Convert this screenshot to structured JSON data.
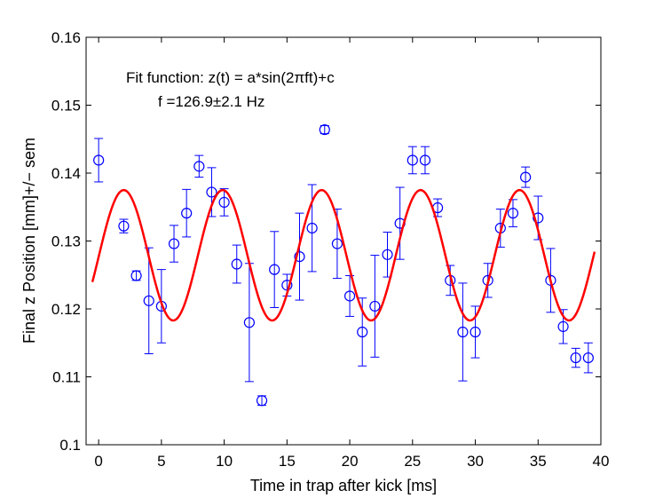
{
  "chart_data": {
    "type": "scatter",
    "xlabel": "Time in trap after kick [ms]",
    "ylabel": "Final z Position [mm]+/− sem",
    "xlim": [
      -1,
      40
    ],
    "ylim": [
      0.1,
      0.16
    ],
    "xticks": [
      0,
      5,
      10,
      15,
      20,
      25,
      30,
      35,
      40
    ],
    "yticks": [
      0.1,
      0.11,
      0.12,
      0.13,
      0.14,
      0.15,
      0.16
    ],
    "ytick_labels": [
      "0.1",
      "0.11",
      "0.12",
      "0.13",
      "0.14",
      "0.15",
      "0.16"
    ],
    "grid": false,
    "annotations": [
      "Fit function: z(t) = a*sin(2πft)+c",
      "f =126.9±2.1 Hz"
    ],
    "series": [
      {
        "type": "errorbar",
        "color": "#0000ff",
        "marker": "circle",
        "x": [
          0,
          2,
          3,
          4,
          5,
          6,
          7,
          8,
          9,
          10,
          11,
          12,
          13,
          14,
          15,
          16,
          17,
          18,
          19,
          20,
          21,
          22,
          23,
          24,
          25,
          26,
          27,
          28,
          29,
          30,
          31,
          32,
          33,
          34,
          35,
          36,
          37,
          38,
          39
        ],
        "y": [
          0.1419,
          0.1322,
          0.1249,
          0.1212,
          0.1204,
          0.1296,
          0.1341,
          0.141,
          0.1372,
          0.1357,
          0.1266,
          0.118,
          0.1065,
          0.1258,
          0.1235,
          0.1277,
          0.1319,
          0.1464,
          0.1296,
          0.1219,
          0.1166,
          0.1204,
          0.128,
          0.1326,
          0.1419,
          0.1419,
          0.1349,
          0.1242,
          0.1166,
          0.1166,
          0.1242,
          0.1319,
          0.1341,
          0.1394,
          0.1334,
          0.1242,
          0.1174,
          0.1128,
          0.1128
        ],
        "err": [
          0.0032,
          0.001,
          0.0007,
          0.0078,
          0.0054,
          0.0027,
          0.0035,
          0.0016,
          0.0036,
          0.002,
          0.0028,
          0.0087,
          0.0007,
          0.0056,
          0.0016,
          0.0064,
          0.0064,
          0.0006,
          0.0051,
          0.003,
          0.005,
          0.0075,
          0.0033,
          0.0053,
          0.002,
          0.002,
          0.0013,
          0.0022,
          0.0072,
          0.0038,
          0.0025,
          0.0028,
          0.002,
          0.0015,
          0.0032,
          0.0047,
          0.0025,
          0.0014,
          0.0022
        ]
      },
      {
        "type": "line",
        "color": "#ff0000",
        "model": "sine",
        "x_range": [
          -0.5,
          39.5
        ],
        "amplitude": 0.0096,
        "frequency_per_ms": 0.1269,
        "phase_zero_ms": 0.03,
        "offset": 0.1279
      }
    ]
  }
}
